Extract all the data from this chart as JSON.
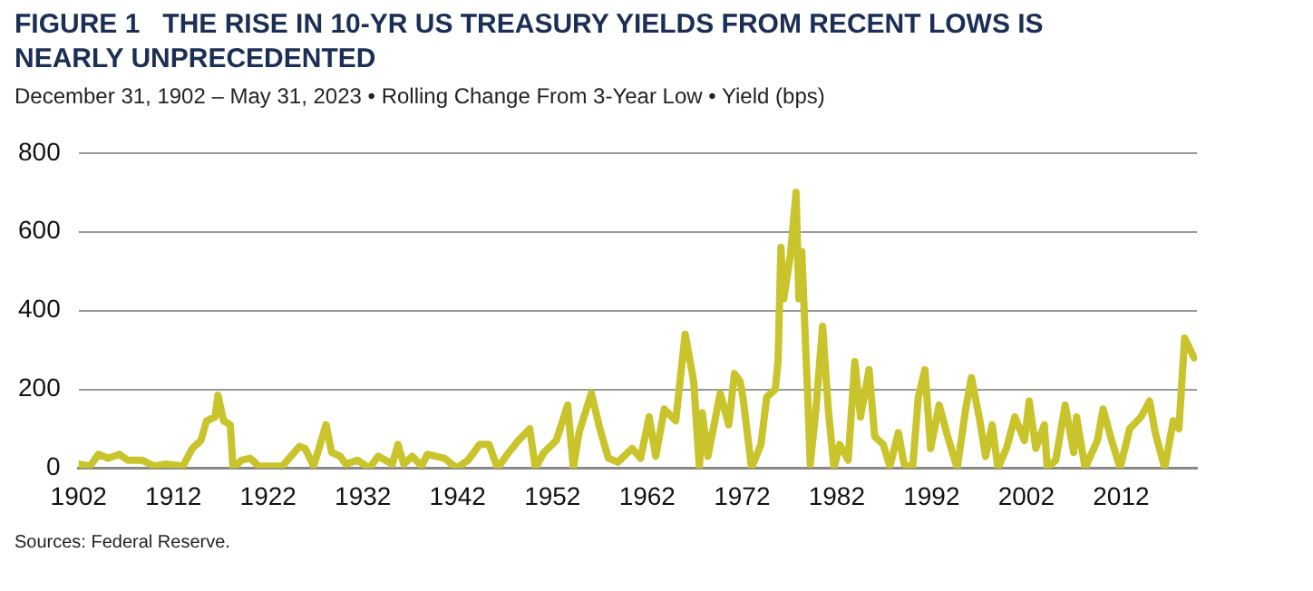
{
  "chart_data": {
    "type": "line",
    "title": "FIGURE 1   THE RISE IN 10-YR US TREASURY YIELDS FROM RECENT LOWS IS NEARLY UNPRECEDENTED",
    "subtitle": "December 31, 1902 – May 31, 2023 • Rolling Change From 3-Year Low • Yield (bps)",
    "annotations": [
      "Sources: Federal Reserve."
    ],
    "x": [
      1902.0,
      1903.2,
      1904.1,
      1905.1,
      1906.3,
      1907.2,
      1908.7,
      1910.0,
      1911.2,
      1913.0,
      1914.0,
      1914.9,
      1915.5,
      1916.4,
      1916.7,
      1917.3,
      1918.0,
      1918.3,
      1919.2,
      1920.1,
      1921.0,
      1922.2,
      1923.5,
      1924.4,
      1925.3,
      1925.9,
      1926.8,
      1928.1,
      1928.7,
      1929.6,
      1930.2,
      1931.4,
      1932.7,
      1933.6,
      1935.1,
      1935.7,
      1936.3,
      1937.2,
      1938.2,
      1938.8,
      1940.6,
      1941.9,
      1943.1,
      1944.3,
      1945.3,
      1946.2,
      1947.4,
      1948.4,
      1949.6,
      1950.2,
      1951.1,
      1952.4,
      1953.6,
      1954.2,
      1954.8,
      1956.1,
      1957.0,
      1957.9,
      1958.9,
      1960.4,
      1961.3,
      1962.2,
      1962.9,
      1963.8,
      1965.0,
      1966.0,
      1966.9,
      1967.5,
      1967.8,
      1968.4,
      1969.7,
      1970.6,
      1971.2,
      1971.8,
      1972.1,
      1973.0,
      1974.0,
      1974.6,
      1975.5,
      1975.8,
      1976.1,
      1976.4,
      1977.1,
      1977.7,
      1978.0,
      1978.3,
      1978.9,
      1979.2,
      1979.8,
      1980.5,
      1981.1,
      1981.7,
      1982.3,
      1983.2,
      1983.9,
      1984.5,
      1985.4,
      1986.0,
      1986.9,
      1987.6,
      1988.5,
      1989.1,
      1990.0,
      1990.6,
      1991.3,
      1991.9,
      1992.8,
      1993.7,
      1994.7,
      1995.6,
      1996.2,
      1997.1,
      1997.7,
      1998.4,
      1999.0,
      1999.9,
      2000.8,
      2001.8,
      2002.3,
      2003.0,
      2003.9,
      2004.2,
      2005.1,
      2006.1,
      2007.0,
      2007.3,
      2008.2,
      2009.5,
      2010.1,
      2011.0,
      2011.9,
      2012.9,
      2014.1,
      2015.0,
      2015.6,
      2016.6,
      2017.5,
      2018.1,
      2018.7,
      2019.3,
      2019.7
    ],
    "series": [
      {
        "color": "#c9c42c",
        "values": [
          10,
          5,
          35,
          25,
          35,
          20,
          20,
          5,
          10,
          5,
          50,
          70,
          120,
          130,
          185,
          120,
          110,
          0,
          20,
          25,
          5,
          5,
          5,
          30,
          55,
          50,
          5,
          110,
          40,
          30,
          10,
          20,
          0,
          30,
          10,
          60,
          10,
          30,
          5,
          35,
          25,
          0,
          20,
          60,
          60,
          0,
          40,
          70,
          100,
          0,
          40,
          70,
          160,
          0,
          90,
          190,
          100,
          25,
          15,
          50,
          25,
          130,
          30,
          150,
          120,
          340,
          220,
          0,
          140,
          30,
          190,
          110,
          240,
          220,
          180,
          0,
          60,
          180,
          200,
          270,
          560,
          430,
          540,
          700,
          430,
          550,
          200,
          10,
          150,
          360,
          150,
          0,
          60,
          20,
          270,
          130,
          250,
          80,
          60,
          5,
          90,
          10,
          0,
          180,
          250,
          50,
          160,
          80,
          0,
          150,
          230,
          120,
          30,
          110,
          0,
          50,
          130,
          70,
          170,
          50,
          110,
          0,
          20,
          160,
          40,
          130,
          0,
          70,
          150,
          70,
          0,
          100,
          130,
          170,
          90,
          0,
          120,
          100,
          330,
          300,
          280
        ]
      }
    ],
    "xlim": [
      1902,
      2020
    ],
    "xticks": [
      1902,
      1912,
      1922,
      1932,
      1942,
      1952,
      1962,
      1972,
      1982,
      1992,
      2002,
      2012
    ],
    "ylim": [
      0,
      800
    ],
    "yticks": [
      0,
      200,
      400,
      600,
      800
    ],
    "grid": "y",
    "legend": false,
    "marker": "none",
    "line_style": "solid"
  }
}
